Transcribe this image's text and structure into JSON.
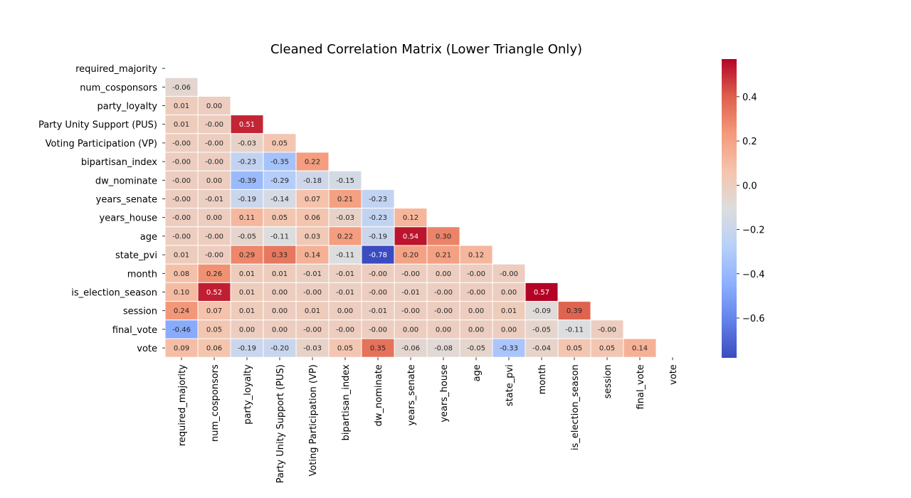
{
  "chart_data": {
    "type": "heatmap",
    "title": "Cleaned Correlation Matrix (Lower Triangle Only)",
    "xlabel": "",
    "ylabel": "",
    "row_labels": [
      "required_majority",
      "num_cosponsors",
      "party_loyalty",
      "Party Unity Support (PUS)",
      "Voting Participation (VP)",
      "bipartisan_index",
      "dw_nominate",
      "years_senate",
      "years_house",
      "age",
      "state_pvi",
      "month",
      "is_election_season",
      "session",
      "final_vote",
      "vote"
    ],
    "col_labels": [
      "required_majority",
      "num_cosponsors",
      "party_loyalty",
      "Party Unity Support (PUS)",
      "Voting Participation (VP)",
      "bipartisan_index",
      "dw_nominate",
      "years_senate",
      "years_house",
      "age",
      "state_pvi",
      "month",
      "is_election_season",
      "session",
      "final_vote",
      "vote"
    ],
    "values": [
      [],
      [
        "-0.06"
      ],
      [
        "0.01",
        "0.00"
      ],
      [
        "0.01",
        "-0.00",
        "0.51"
      ],
      [
        "-0.00",
        "-0.00",
        "-0.03",
        "0.05"
      ],
      [
        "-0.00",
        "-0.00",
        "-0.23",
        "-0.35",
        "0.22"
      ],
      [
        "-0.00",
        "0.00",
        "-0.39",
        "-0.29",
        "-0.18",
        "-0.15"
      ],
      [
        "-0.00",
        "-0.01",
        "-0.19",
        "-0.14",
        "0.07",
        "0.21",
        "-0.23"
      ],
      [
        "-0.00",
        "0.00",
        "0.11",
        "0.05",
        "0.06",
        "-0.03",
        "-0.23",
        "0.12"
      ],
      [
        "-0.00",
        "-0.00",
        "-0.05",
        "-0.11",
        "0.03",
        "0.22",
        "-0.19",
        "0.54",
        "0.30"
      ],
      [
        "0.01",
        "-0.00",
        "0.29",
        "0.33",
        "0.14",
        "-0.11",
        "-0.78",
        "0.20",
        "0.21",
        "0.12"
      ],
      [
        "0.08",
        "0.26",
        "0.01",
        "0.01",
        "-0.01",
        "-0.01",
        "-0.00",
        "-0.00",
        "0.00",
        "-0.00",
        "-0.00"
      ],
      [
        "0.10",
        "0.52",
        "0.01",
        "0.00",
        "-0.00",
        "-0.01",
        "-0.00",
        "-0.01",
        "-0.00",
        "-0.00",
        "0.00",
        "0.57"
      ],
      [
        "0.24",
        "0.07",
        "0.01",
        "0.00",
        "0.01",
        "0.00",
        "-0.01",
        "-0.00",
        "-0.00",
        "0.00",
        "0.01",
        "-0.09",
        "0.39"
      ],
      [
        "-0.46",
        "0.05",
        "0.00",
        "0.00",
        "-0.00",
        "-0.00",
        "-0.00",
        "0.00",
        "0.00",
        "0.00",
        "0.00",
        "-0.05",
        "-0.11",
        "-0.00"
      ],
      [
        "0.09",
        "0.06",
        "-0.19",
        "-0.20",
        "-0.03",
        "0.05",
        "0.35",
        "-0.06",
        "-0.08",
        "-0.05",
        "-0.33",
        "-0.04",
        "0.05",
        "0.05",
        "0.14"
      ]
    ],
    "colormap": "coolwarm",
    "vmin": -0.78,
    "vmax": 0.57,
    "colorbar_ticks": [
      "0.4",
      "0.2",
      "0.0",
      "−0.2",
      "−0.4",
      "−0.6"
    ]
  }
}
